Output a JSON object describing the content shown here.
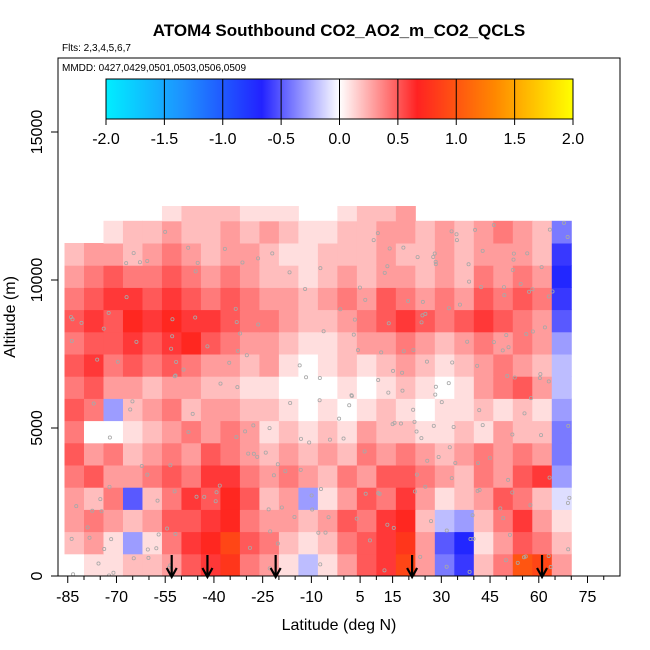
{
  "chart_data": {
    "type": "heatmap",
    "title": "ATOM4 Southbound CO2_AO2_m_CO2_QCLS",
    "flights_text": "Flts: 2,3,4,5,6,7",
    "dates_text": "MMDD: 0427,0429,0501,0503,0506,0509",
    "xlabel": "Latitude (deg N)",
    "ylabel": "Altitude (m)",
    "xlim": [
      -88,
      85
    ],
    "ylim": [
      0,
      17500
    ],
    "x_ticks": [
      -85,
      -70,
      -55,
      -40,
      -25,
      -10,
      5,
      15,
      30,
      45,
      60,
      75
    ],
    "x_tick_labels": [
      "-85",
      "-70",
      "-55",
      "-40",
      "-25",
      "-10",
      "5",
      "15",
      "30",
      "45",
      "60",
      "75"
    ],
    "x_minor_ticks": [
      -80,
      -75,
      -65,
      -60,
      -50,
      -45,
      -35,
      -30,
      -20,
      -15,
      -5,
      0,
      10,
      20,
      25,
      35,
      40,
      50,
      55,
      65,
      70,
      80
    ],
    "y_ticks": [
      0,
      5000,
      10000,
      15000
    ],
    "y_tick_labels": [
      "0",
      "5000",
      "10000",
      "15000"
    ],
    "colorbar": {
      "range": [
        -2.0,
        2.0
      ],
      "ticks": [
        "-2.0",
        "-1.5",
        "-1.0",
        "-0.5",
        "0.0",
        "0.5",
        "1.0",
        "1.5",
        "2.0"
      ],
      "tick_values": [
        -2.0,
        -1.5,
        -1.0,
        -0.5,
        0.0,
        0.5,
        1.0,
        1.5,
        2.0
      ],
      "colors": [
        "#00eeff",
        "#1e90ff",
        "#2222ff",
        "#ffffff",
        "#ff2222",
        "#ff8800",
        "#ffff00"
      ]
    },
    "grid": {
      "lat_edges": [
        -86,
        -80,
        -74,
        -68,
        -62,
        -56,
        -50,
        -44,
        -38,
        -32,
        -26,
        -20,
        -14,
        -8,
        -2,
        4,
        10,
        16,
        22,
        28,
        34,
        40,
        46,
        52,
        58,
        64,
        70
      ],
      "alt_bins": [
        0,
        750,
        1500,
        2250,
        3000,
        3750,
        4500,
        5250,
        6000,
        6750,
        7500,
        8250,
        9000,
        9750,
        10500,
        11250,
        12000,
        12500
      ],
      "values": [
        [
          null,
          0.1,
          0.1,
          0.2,
          0.2,
          0.3,
          0.5,
          0.6,
          0.8,
          0.4,
          0.3,
          0.1,
          -0.2,
          0.1,
          0.3,
          0.5,
          0.6,
          0.9,
          0.3,
          -0.4,
          -0.6,
          0.2,
          0.4,
          1.0,
          0.9,
          0.3
        ],
        [
          0.2,
          0.3,
          0.1,
          -0.3,
          0.1,
          0.4,
          0.6,
          0.7,
          0.9,
          0.5,
          0.4,
          0.2,
          0.1,
          0.2,
          0.4,
          0.5,
          0.6,
          0.8,
          0.3,
          -0.5,
          -0.7,
          0.1,
          0.3,
          0.5,
          0.4,
          0.2
        ],
        [
          0.3,
          0.4,
          0.3,
          0.2,
          0.3,
          0.5,
          0.5,
          0.6,
          0.7,
          0.4,
          0.3,
          0.3,
          0.2,
          0.3,
          0.5,
          0.4,
          0.6,
          0.7,
          0.2,
          -0.2,
          -0.3,
          0.2,
          0.4,
          0.6,
          0.3,
          0.1
        ],
        [
          0.3,
          0.2,
          0.4,
          -0.5,
          0.2,
          0.4,
          0.6,
          0.5,
          0.7,
          0.5,
          0.2,
          0.3,
          -0.3,
          0.1,
          0.3,
          0.5,
          0.4,
          0.6,
          0.3,
          0.1,
          0.2,
          0.3,
          0.5,
          0.4,
          0.2,
          -0.1
        ],
        [
          0.4,
          0.5,
          0.3,
          0.3,
          0.4,
          0.5,
          0.4,
          0.6,
          0.6,
          0.4,
          0.3,
          0.4,
          0.3,
          0.2,
          0.4,
          0.3,
          0.5,
          0.5,
          0.4,
          0.3,
          0.2,
          0.4,
          0.3,
          0.5,
          0.6,
          -0.3
        ],
        [
          0.5,
          0.3,
          0.4,
          0.2,
          0.3,
          0.4,
          0.3,
          0.5,
          0.4,
          0.3,
          0.2,
          0.3,
          0.2,
          0.3,
          0.2,
          0.4,
          0.3,
          0.4,
          0.3,
          0.2,
          0.3,
          0.4,
          0.3,
          0.4,
          0.3,
          -0.4
        ],
        [
          0.4,
          0.0,
          0.0,
          0.1,
          0.2,
          0.3,
          0.4,
          0.3,
          0.4,
          0.3,
          0.1,
          0.2,
          0.1,
          0.2,
          0.1,
          0.3,
          0.2,
          0.2,
          0.1,
          0.1,
          0.2,
          0.1,
          0.3,
          0.2,
          0.2,
          -0.4
        ],
        [
          0.5,
          0.4,
          -0.3,
          0.2,
          0.3,
          0.4,
          0.2,
          0.3,
          0.3,
          0.2,
          0.2,
          0.1,
          0.0,
          0.1,
          0.0,
          0.1,
          0.2,
          0.1,
          0.0,
          0.1,
          0.1,
          0.2,
          0.1,
          0.2,
          0.1,
          -0.3
        ],
        [
          0.4,
          0.5,
          0.3,
          0.3,
          0.2,
          0.3,
          0.3,
          0.2,
          0.2,
          0.1,
          0.1,
          0.0,
          0.0,
          0.0,
          0.1,
          0.0,
          0.1,
          0.2,
          0.1,
          0.0,
          0.1,
          0.3,
          0.4,
          0.5,
          0.3,
          -0.2
        ],
        [
          0.5,
          0.6,
          0.4,
          0.5,
          0.4,
          0.5,
          0.4,
          0.3,
          0.3,
          0.2,
          0.3,
          0.1,
          0.0,
          0.1,
          0.2,
          0.1,
          0.2,
          0.3,
          0.2,
          0.1,
          0.2,
          0.3,
          0.4,
          0.3,
          0.2,
          -0.2
        ],
        [
          0.4,
          0.5,
          0.5,
          0.6,
          0.5,
          0.6,
          0.7,
          0.5,
          0.4,
          0.3,
          0.3,
          0.2,
          0.1,
          0.1,
          0.2,
          0.3,
          0.3,
          0.4,
          0.3,
          0.2,
          0.3,
          0.4,
          0.3,
          0.4,
          0.3,
          -0.3
        ],
        [
          0.5,
          0.6,
          0.5,
          0.7,
          0.6,
          0.7,
          0.6,
          0.6,
          0.5,
          0.4,
          0.4,
          0.3,
          0.2,
          0.2,
          0.3,
          0.4,
          0.5,
          0.6,
          0.5,
          0.4,
          0.5,
          0.6,
          0.5,
          0.4,
          0.3,
          -0.5
        ],
        [
          0.4,
          0.5,
          0.6,
          0.6,
          0.5,
          0.6,
          0.5,
          0.4,
          0.5,
          0.4,
          0.3,
          0.3,
          0.2,
          0.3,
          0.4,
          0.3,
          0.5,
          0.4,
          0.3,
          0.4,
          0.3,
          0.5,
          0.4,
          0.5,
          0.4,
          -0.6
        ],
        [
          0.3,
          0.4,
          0.5,
          0.4,
          0.4,
          0.5,
          0.4,
          0.3,
          0.4,
          0.3,
          0.2,
          0.2,
          0.1,
          0.2,
          0.3,
          0.2,
          0.3,
          0.3,
          0.2,
          0.3,
          0.2,
          0.4,
          0.3,
          0.4,
          0.3,
          -0.7
        ],
        [
          0.2,
          0.3,
          0.3,
          0.2,
          0.3,
          0.4,
          0.3,
          0.2,
          0.3,
          0.3,
          0.2,
          0.1,
          0.1,
          0.2,
          0.2,
          0.2,
          0.3,
          0.2,
          0.2,
          0.3,
          0.2,
          0.3,
          0.3,
          0.3,
          0.2,
          -0.6
        ],
        [
          null,
          null,
          0.1,
          0.2,
          0.2,
          0.3,
          0.2,
          0.2,
          0.3,
          0.2,
          0.3,
          0.2,
          0.1,
          0.1,
          0.2,
          0.2,
          0.3,
          0.3,
          0.2,
          0.3,
          0.2,
          0.3,
          0.4,
          0.3,
          0.2,
          -0.4
        ],
        [
          null,
          null,
          null,
          null,
          null,
          0.1,
          0.2,
          0.2,
          0.2,
          0.1,
          0.1,
          0.1,
          null,
          null,
          0.1,
          0.2,
          0.2,
          0.3,
          null,
          null,
          null,
          null,
          null,
          null,
          null,
          null
        ]
      ]
    },
    "pointer_arrows_lat": [
      -53,
      -42,
      -21,
      21,
      61
    ]
  }
}
